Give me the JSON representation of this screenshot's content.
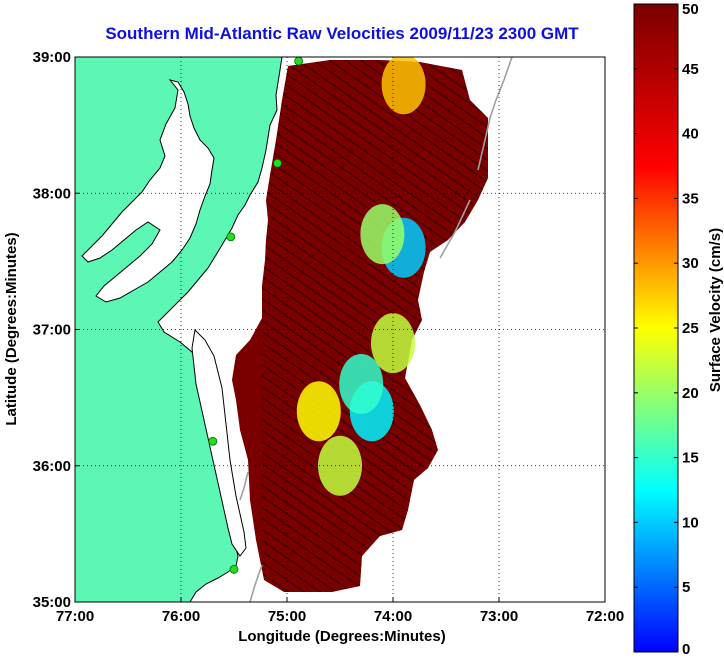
{
  "title": "Southern Mid-Atlantic Raw Velocities 2009/11/23 2300 GMT",
  "colors": {
    "title": "#1010dd",
    "land": "#5cf7b4",
    "coast": "#000000",
    "background": "#ffffff",
    "high_velocity": "#7a0000",
    "bathymetry": "#a0a0a0",
    "station": "#22dd22"
  },
  "chart_data": {
    "type": "heatmap",
    "title": "Southern Mid-Atlantic Raw Velocities 2009/11/23 2300 GMT",
    "xlabel": "Longitude (Degrees:Minutes)",
    "ylabel": "Latitude (Degrees:Minutes)",
    "xlim": [
      -77,
      -72
    ],
    "ylim": [
      35,
      39
    ],
    "x_ticks": [
      {
        "value": -77,
        "label": "77:00"
      },
      {
        "value": -76,
        "label": "76:00"
      },
      {
        "value": -75,
        "label": "75:00"
      },
      {
        "value": -74,
        "label": "74:00"
      },
      {
        "value": -73,
        "label": "73:00"
      },
      {
        "value": -72,
        "label": "72:00"
      }
    ],
    "y_ticks": [
      {
        "value": 35,
        "label": "35:00"
      },
      {
        "value": 36,
        "label": "36:00"
      },
      {
        "value": 37,
        "label": "37:00"
      },
      {
        "value": 38,
        "label": "38:00"
      },
      {
        "value": 39,
        "label": "39:00"
      }
    ],
    "grid": true,
    "grid_style": "dotted",
    "colorbar": {
      "label": "Surface Velocity (cm/s)",
      "min": 0,
      "max": 50,
      "ticks": [
        0,
        5,
        10,
        15,
        20,
        25,
        30,
        35,
        40,
        45,
        50
      ],
      "colormap": "jet",
      "placement": "right"
    },
    "low_velocity_patches": [
      {
        "lon": -74.2,
        "lat": 36.4,
        "value": 12
      },
      {
        "lon": -74.3,
        "lat": 36.6,
        "value": 15
      },
      {
        "lon": -73.9,
        "lat": 37.6,
        "value": 10
      },
      {
        "lon": -74.1,
        "lat": 37.7,
        "value": 20
      },
      {
        "lon": -74.7,
        "lat": 36.4,
        "value": 25
      },
      {
        "lon": -74.5,
        "lat": 36.0,
        "value": 22
      },
      {
        "lon": -73.9,
        "lat": 38.8,
        "value": 28
      },
      {
        "lon": -74.0,
        "lat": 36.9,
        "value": 22
      }
    ],
    "stations": [
      {
        "lon": -74.89,
        "lat": 38.97
      },
      {
        "lon": -75.09,
        "lat": 38.22
      },
      {
        "lon": -75.53,
        "lat": 37.68
      },
      {
        "lon": -75.7,
        "lat": 36.18
      },
      {
        "lon": -75.5,
        "lat": 35.24
      }
    ]
  }
}
